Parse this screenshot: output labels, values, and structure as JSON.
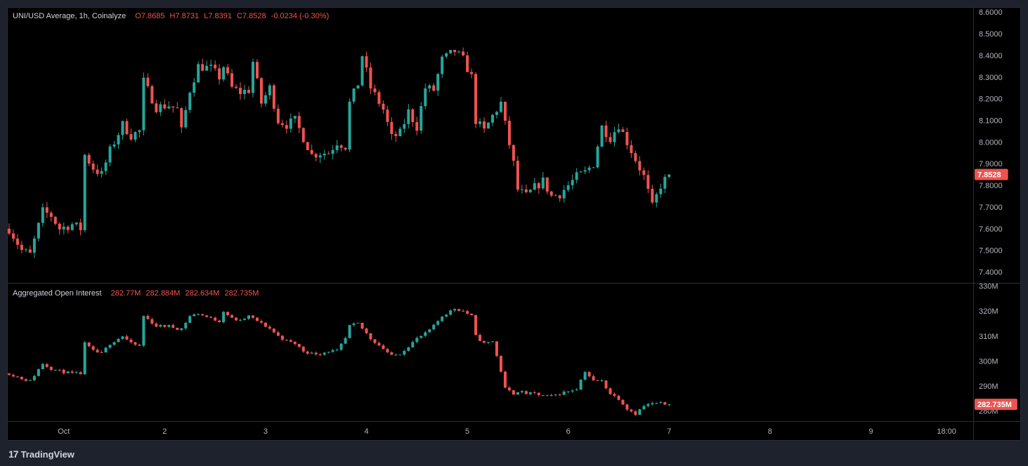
{
  "header": {
    "symbol": "UNI/USD Average, 1h, Coinalyze",
    "open": "O7.8685",
    "high": "H7.8731",
    "low": "L7.8391",
    "close": "C7.8528",
    "change": "-0.0234 (-0.30%)"
  },
  "oi_header": {
    "label": "Aggregated Open Interest",
    "open": "282.77M",
    "high": "282.884M",
    "low": "282.634M",
    "close": "282.735M"
  },
  "branding": {
    "text": "TradingView",
    "logo": "tradingview-logo-icon"
  },
  "colors": {
    "up": "#26a69a",
    "down": "#ef5350",
    "text": "#b2b5be",
    "grid": "#2a2e39"
  },
  "chart_data": [
    {
      "type": "candlestick",
      "name": "price",
      "yticks": [
        "8.6000",
        "8.5000",
        "8.4000",
        "8.3000",
        "8.2000",
        "8.1000",
        "8.0000",
        "7.9000",
        "7.8000",
        "7.7000",
        "7.6000",
        "7.5000",
        "7.4000"
      ],
      "ylim": [
        7.35,
        8.62
      ],
      "last_value_label": "7.8528",
      "x_labels": [
        {
          "label": "Oct",
          "hour": 0
        },
        {
          "label": "2",
          "hour": 24
        },
        {
          "label": "3",
          "hour": 48
        },
        {
          "label": "4",
          "hour": 72
        },
        {
          "label": "5",
          "hour": 96
        },
        {
          "label": "6",
          "hour": 120
        },
        {
          "label": "7",
          "hour": 144
        },
        {
          "label": "8",
          "hour": 168
        },
        {
          "label": "9",
          "hour": 192
        },
        {
          "label": "18:00",
          "hour": 210
        }
      ],
      "x_start_hour": -13,
      "x_end_hour": 216,
      "anchors": [
        [
          -13,
          7.6
        ],
        [
          -10,
          7.5
        ],
        [
          -8,
          7.48
        ],
        [
          -5,
          7.68
        ],
        [
          -3,
          7.66
        ],
        [
          -1,
          7.6
        ],
        [
          2,
          7.62
        ],
        [
          4,
          7.6
        ],
        [
          5,
          7.94
        ],
        [
          7,
          7.88
        ],
        [
          9,
          7.85
        ],
        [
          11,
          7.96
        ],
        [
          14,
          8.08
        ],
        [
          16,
          8.03
        ],
        [
          18,
          8.05
        ],
        [
          19,
          8.28
        ],
        [
          22,
          8.16
        ],
        [
          25,
          8.17
        ],
        [
          27,
          8.15
        ],
        [
          28,
          8.05
        ],
        [
          30,
          8.24
        ],
        [
          32,
          8.35
        ],
        [
          35,
          8.34
        ],
        [
          37,
          8.3
        ],
        [
          38,
          8.35
        ],
        [
          40,
          8.25
        ],
        [
          42,
          8.23
        ],
        [
          44,
          8.24
        ],
        [
          45,
          8.37
        ],
        [
          47,
          8.18
        ],
        [
          49,
          8.25
        ],
        [
          51,
          8.1
        ],
        [
          53,
          8.08
        ],
        [
          55,
          8.1
        ],
        [
          57,
          8.02
        ],
        [
          59,
          7.94
        ],
        [
          61,
          7.95
        ],
        [
          63,
          7.95
        ],
        [
          65,
          8.0
        ],
        [
          67,
          7.98
        ],
        [
          68,
          8.18
        ],
        [
          70,
          8.27
        ],
        [
          71,
          8.4
        ],
        [
          73,
          8.25
        ],
        [
          76,
          8.15
        ],
        [
          78,
          8.02
        ],
        [
          80,
          8.04
        ],
        [
          82,
          8.14
        ],
        [
          84,
          8.07
        ],
        [
          86,
          8.25
        ],
        [
          88,
          8.24
        ],
        [
          90,
          8.38
        ],
        [
          93,
          8.42
        ],
        [
          95,
          8.38
        ],
        [
          97,
          8.3
        ],
        [
          98,
          8.1
        ],
        [
          100,
          8.05
        ],
        [
          102,
          8.12
        ],
        [
          104,
          8.18
        ],
        [
          105,
          8.08
        ],
        [
          107,
          7.9
        ],
        [
          108,
          7.78
        ],
        [
          110,
          7.75
        ],
        [
          112,
          7.79
        ],
        [
          114,
          7.82
        ],
        [
          116,
          7.75
        ],
        [
          118,
          7.76
        ],
        [
          120,
          7.8
        ],
        [
          122,
          7.84
        ],
        [
          124,
          7.86
        ],
        [
          126,
          7.9
        ],
        [
          128,
          8.07
        ],
        [
          130,
          8.02
        ],
        [
          132,
          8.08
        ],
        [
          134,
          8.0
        ],
        [
          136,
          7.92
        ],
        [
          138,
          7.84
        ],
        [
          140,
          7.7
        ],
        [
          142,
          7.8
        ],
        [
          144,
          7.85
        ]
      ]
    },
    {
      "type": "candlestick",
      "name": "Aggregated Open Interest",
      "yticks": [
        "330M",
        "320M",
        "310M",
        "300M",
        "290M",
        "280M"
      ],
      "ylim": [
        276,
        331
      ],
      "last_value_label": "282.735M",
      "anchors": [
        [
          -13,
          295
        ],
        [
          -10,
          293
        ],
        [
          -8,
          292
        ],
        [
          -5,
          299
        ],
        [
          -3,
          297
        ],
        [
          -1,
          296
        ],
        [
          2,
          295
        ],
        [
          4,
          295
        ],
        [
          5,
          307
        ],
        [
          7,
          304
        ],
        [
          9,
          303
        ],
        [
          11,
          307
        ],
        [
          14,
          310
        ],
        [
          16,
          307
        ],
        [
          18,
          306
        ],
        [
          19,
          318
        ],
        [
          22,
          314
        ],
        [
          25,
          314
        ],
        [
          27,
          313
        ],
        [
          28,
          313
        ],
        [
          30,
          318
        ],
        [
          32,
          319
        ],
        [
          35,
          317
        ],
        [
          37,
          316
        ],
        [
          38,
          320
        ],
        [
          40,
          317
        ],
        [
          42,
          316
        ],
        [
          44,
          318
        ],
        [
          45,
          317
        ],
        [
          47,
          315
        ],
        [
          49,
          313
        ],
        [
          51,
          310
        ],
        [
          53,
          308
        ],
        [
          55,
          307
        ],
        [
          57,
          304
        ],
        [
          59,
          303
        ],
        [
          61,
          303
        ],
        [
          63,
          304
        ],
        [
          65,
          304
        ],
        [
          67,
          309
        ],
        [
          68,
          314
        ],
        [
          70,
          315
        ],
        [
          71,
          313
        ],
        [
          73,
          309
        ],
        [
          76,
          305
        ],
        [
          78,
          302
        ],
        [
          80,
          303
        ],
        [
          82,
          306
        ],
        [
          84,
          309
        ],
        [
          86,
          311
        ],
        [
          88,
          314
        ],
        [
          90,
          318
        ],
        [
          93,
          321
        ],
        [
          95,
          320
        ],
        [
          97,
          318
        ],
        [
          98,
          310
        ],
        [
          100,
          307
        ],
        [
          102,
          308
        ],
        [
          104,
          296
        ],
        [
          105,
          289
        ],
        [
          107,
          287
        ],
        [
          108,
          288
        ],
        [
          110,
          287
        ],
        [
          112,
          287
        ],
        [
          114,
          286
        ],
        [
          116,
          286
        ],
        [
          118,
          287
        ],
        [
          120,
          288
        ],
        [
          122,
          289
        ],
        [
          124,
          296
        ],
        [
          126,
          292
        ],
        [
          128,
          292
        ],
        [
          130,
          287
        ],
        [
          132,
          285
        ],
        [
          134,
          281
        ],
        [
          136,
          279
        ],
        [
          138,
          282
        ],
        [
          140,
          283
        ],
        [
          142,
          283
        ],
        [
          144,
          282.7
        ]
      ]
    }
  ]
}
